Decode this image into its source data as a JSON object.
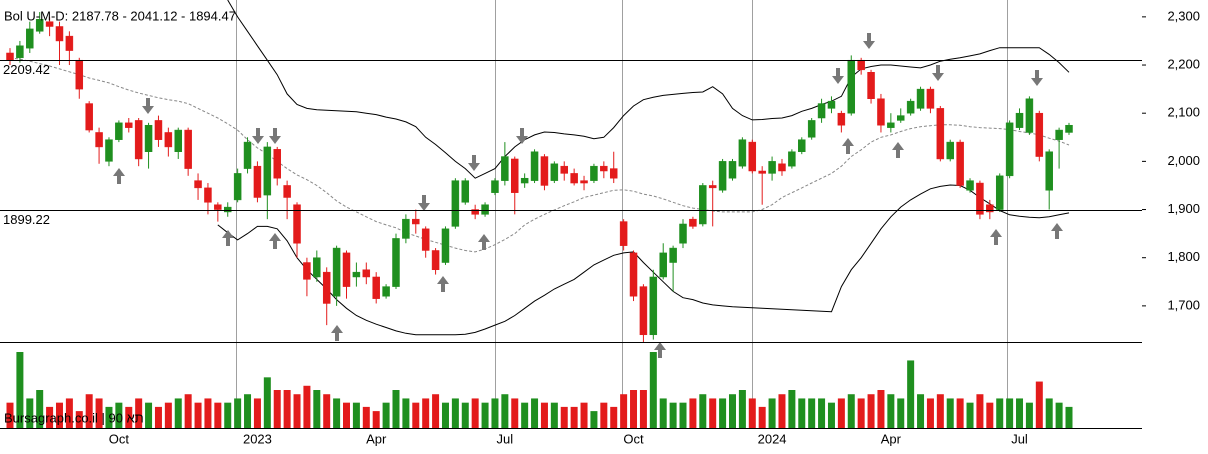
{
  "chart_data": {
    "type": "candlestick",
    "title": "Bol U-M-D: 2187.78 - 2041.12 - 1894.47",
    "watermark": "Bursagraph.co.il | 90 תא",
    "up_color": "#1f8f1f",
    "down_color": "#e31b1b",
    "band_color": "#000000",
    "ylim": [
      1625,
      2335
    ],
    "yticks": [
      {
        "value": 1700,
        "label": "1,700"
      },
      {
        "value": 1800,
        "label": "1,800"
      },
      {
        "value": 1900,
        "label": "1,900"
      },
      {
        "value": 2000,
        "label": "2,000"
      },
      {
        "value": 2100,
        "label": "2,100"
      },
      {
        "value": 2200,
        "label": "2,200"
      },
      {
        "value": 2300,
        "label": "2,300"
      }
    ],
    "levels": [
      2209.42,
      1899.22
    ],
    "categories": [
      null,
      null,
      null,
      null,
      null,
      null,
      null,
      null,
      null,
      null,
      null,
      "Oct",
      null,
      null,
      null,
      null,
      null,
      null,
      null,
      null,
      null,
      null,
      null,
      null,
      null,
      "2023",
      null,
      null,
      null,
      null,
      null,
      null,
      null,
      null,
      null,
      null,
      null,
      "Apr",
      null,
      null,
      null,
      null,
      null,
      null,
      null,
      null,
      null,
      null,
      null,
      null,
      "Jul",
      null,
      null,
      null,
      null,
      null,
      null,
      null,
      null,
      null,
      null,
      null,
      null,
      "Oct",
      null,
      null,
      null,
      null,
      null,
      null,
      null,
      null,
      null,
      null,
      null,
      null,
      null,
      "2024",
      null,
      null,
      null,
      null,
      null,
      null,
      null,
      null,
      null,
      null,
      null,
      "Apr",
      null,
      null,
      null,
      null,
      null,
      null,
      null,
      null,
      null,
      null,
      null,
      null,
      "Jul",
      null,
      null,
      null,
      null,
      null
    ],
    "open": [
      2225,
      2215,
      2235,
      2270,
      2290,
      2280,
      2260,
      2210,
      2120,
      2060,
      2000,
      2045,
      2080,
      2085,
      2020,
      2085,
      2060,
      2020,
      2065,
      1960,
      1945,
      1910,
      1895,
      1920,
      1985,
      1990,
      1930,
      2025,
      1950,
      1910,
      1790,
      1760,
      1770,
      1720,
      1810,
      1760,
      1775,
      1760,
      1720,
      1740,
      1840,
      1880,
      1860,
      1815,
      1790,
      1865,
      1915,
      1900,
      1890,
      1935,
      1960,
      2005,
      1955,
      1960,
      2010,
      1960,
      1990,
      1975,
      1960,
      1960,
      1990,
      1985,
      1875,
      1810,
      1740,
      1640,
      1760,
      1790,
      1830,
      1880,
      1870,
      1950,
      1940,
      1965,
      1990,
      2040,
      1980,
      1975,
      1995,
      1990,
      2020,
      2050,
      2090,
      2110,
      2100,
      2100,
      2210,
      2185,
      2130,
      2070,
      2085,
      2100,
      2110,
      2150,
      2110,
      2005,
      2040,
      1940,
      1955,
      1910,
      1900,
      1970,
      2070,
      2060,
      2100,
      1940,
      2045,
      2060
    ],
    "high": [
      2235,
      2250,
      2290,
      2310,
      2300,
      2290,
      2270,
      2215,
      2125,
      2070,
      2050,
      2085,
      2090,
      2090,
      2080,
      2095,
      2070,
      2070,
      2070,
      1975,
      1955,
      1915,
      1915,
      1985,
      2050,
      2000,
      2040,
      2030,
      1960,
      1915,
      1800,
      1815,
      1780,
      1825,
      1815,
      1790,
      1790,
      1770,
      1745,
      1850,
      1890,
      1900,
      1865,
      1820,
      1865,
      1965,
      1965,
      1910,
      1915,
      1965,
      2040,
      2010,
      1975,
      2025,
      2015,
      2000,
      2000,
      1985,
      1970,
      1995,
      2000,
      2020,
      1880,
      1815,
      1745,
      1775,
      1830,
      1825,
      1880,
      1885,
      1955,
      1960,
      2005,
      2005,
      2050,
      2045,
      1990,
      2010,
      2005,
      2025,
      2050,
      2090,
      2130,
      2135,
      2105,
      2220,
      2215,
      2190,
      2140,
      2100,
      2110,
      2130,
      2155,
      2155,
      2115,
      2045,
      2045,
      1965,
      1960,
      1920,
      1975,
      2085,
      2110,
      2135,
      2105,
      2025,
      2070,
      2080
    ],
    "low": [
      2200,
      2205,
      2225,
      2265,
      2260,
      2200,
      2200,
      2130,
      2060,
      1995,
      1990,
      2040,
      2060,
      1990,
      1985,
      2030,
      2010,
      2005,
      1970,
      1920,
      1890,
      1875,
      1885,
      1915,
      1975,
      1915,
      1880,
      1950,
      1880,
      1800,
      1720,
      1750,
      1660,
      1700,
      1715,
      1740,
      1745,
      1705,
      1715,
      1735,
      1830,
      1850,
      1800,
      1765,
      1785,
      1860,
      1910,
      1880,
      1885,
      1930,
      1950,
      1890,
      1945,
      1955,
      1940,
      1955,
      1960,
      1950,
      1940,
      1955,
      1965,
      1955,
      1815,
      1710,
      1625,
      1630,
      1755,
      1730,
      1820,
      1860,
      1865,
      1865,
      1935,
      1960,
      1985,
      1975,
      1910,
      1960,
      1970,
      1985,
      2015,
      2045,
      2080,
      2100,
      2060,
      2095,
      2180,
      2120,
      2060,
      2060,
      2080,
      2095,
      2105,
      2100,
      2000,
      2000,
      1945,
      1935,
      1880,
      1880,
      1895,
      1965,
      2065,
      2055,
      2000,
      1900,
      1985,
      2055
    ],
    "close": [
      2210,
      2240,
      2275,
      2295,
      2280,
      2250,
      2230,
      2150,
      2065,
      2030,
      2045,
      2080,
      2070,
      2005,
      2075,
      2045,
      2030,
      2065,
      1985,
      1945,
      1915,
      1900,
      1905,
      1975,
      2040,
      1925,
      2030,
      1965,
      1925,
      1830,
      1755,
      1800,
      1705,
      1820,
      1740,
      1770,
      1760,
      1715,
      1740,
      1840,
      1880,
      1870,
      1815,
      1775,
      1860,
      1960,
      1960,
      1890,
      1910,
      1960,
      2010,
      1935,
      1965,
      2020,
      1950,
      1995,
      1975,
      1955,
      1955,
      1990,
      1980,
      1965,
      1825,
      1720,
      1640,
      1760,
      1810,
      1820,
      1870,
      1865,
      1950,
      1945,
      2000,
      2000,
      2045,
      1980,
      1975,
      2000,
      1980,
      2020,
      2045,
      2085,
      2120,
      2125,
      2075,
      2210,
      2190,
      2130,
      2075,
      2080,
      2095,
      2125,
      2150,
      2110,
      2005,
      2040,
      1950,
      1960,
      1890,
      1895,
      1970,
      2080,
      2100,
      2130,
      2010,
      2020,
      2065,
      2075
    ],
    "volume": [
      30,
      90,
      35,
      45,
      25,
      30,
      35,
      20,
      40,
      35,
      25,
      30,
      25,
      35,
      30,
      25,
      30,
      35,
      40,
      30,
      35,
      30,
      30,
      35,
      40,
      35,
      60,
      45,
      45,
      40,
      50,
      45,
      40,
      35,
      30,
      30,
      25,
      20,
      30,
      45,
      35,
      30,
      35,
      40,
      30,
      35,
      30,
      35,
      30,
      35,
      40,
      35,
      30,
      35,
      30,
      30,
      25,
      25,
      30,
      20,
      30,
      25,
      40,
      45,
      45,
      90,
      35,
      30,
      30,
      35,
      40,
      35,
      35,
      40,
      45,
      35,
      25,
      35,
      40,
      45,
      35,
      35,
      35,
      30,
      35,
      40,
      35,
      40,
      45,
      40,
      35,
      80,
      40,
      35,
      40,
      35,
      35,
      30,
      40,
      30,
      35,
      35,
      35,
      30,
      55,
      35,
      30,
      25
    ],
    "bands": {
      "upper": [
        null,
        null,
        null,
        null,
        null,
        null,
        null,
        null,
        null,
        null,
        null,
        null,
        null,
        null,
        null,
        null,
        null,
        null,
        null,
        null,
        null,
        null,
        2335,
        2300,
        2270,
        2240,
        2210,
        2180,
        2140,
        2118,
        2110,
        2107,
        2106,
        2105,
        2104,
        2103,
        2100,
        2097,
        2092,
        2088,
        2082,
        2072,
        2050,
        2035,
        2018,
        2000,
        1985,
        1965,
        1975,
        1985,
        2010,
        2030,
        2045,
        2055,
        2061,
        2060,
        2057,
        2055,
        2052,
        2047,
        2050,
        2070,
        2095,
        2115,
        2128,
        2133,
        2137,
        2139,
        2141,
        2143,
        2144,
        2155,
        2140,
        2110,
        2095,
        2086,
        2087,
        2089,
        2090,
        2095,
        2104,
        2110,
        2118,
        2125,
        2135,
        2175,
        2192,
        2197,
        2200,
        2200,
        2198,
        2196,
        2194,
        2200,
        2208,
        2212,
        2215,
        2219,
        2223,
        2230,
        2236,
        2236,
        2236,
        2236,
        2236,
        2222,
        2205,
        2185
      ],
      "middle": [
        2215,
        2212,
        2208,
        2203,
        2198,
        2192,
        2186,
        2180,
        2173,
        2168,
        2163,
        2155,
        2148,
        2142,
        2137,
        2132,
        2128,
        2125,
        2120,
        2110,
        2100,
        2090,
        2078,
        2065,
        2045,
        2028,
        2015,
        2000,
        1985,
        1972,
        1962,
        1950,
        1935,
        1918,
        1905,
        1895,
        1885,
        1875,
        1868,
        1862,
        1852,
        1845,
        1838,
        1832,
        1826,
        1820,
        1815,
        1812,
        1818,
        1827,
        1838,
        1850,
        1868,
        1880,
        1890,
        1899,
        1908,
        1916,
        1925,
        1930,
        1935,
        1940,
        1941,
        1938,
        1932,
        1928,
        1922,
        1915,
        1908,
        1903,
        1900,
        1897,
        1895,
        1895,
        1895,
        1895,
        1900,
        1910,
        1925,
        1935,
        1945,
        1955,
        1965,
        1975,
        1990,
        2010,
        2024,
        2040,
        2050,
        2055,
        2062,
        2068,
        2072,
        2074,
        2076,
        2076,
        2075,
        2072,
        2070,
        2069,
        2068,
        2066,
        2062,
        2059,
        2055,
        2048,
        2042,
        2034
      ],
      "lower": [
        null,
        null,
        null,
        null,
        null,
        null,
        null,
        null,
        null,
        null,
        null,
        null,
        null,
        null,
        null,
        null,
        null,
        null,
        null,
        null,
        null,
        1868,
        1852,
        1837,
        1850,
        1865,
        1865,
        1860,
        1835,
        1800,
        1775,
        1755,
        1735,
        1713,
        1695,
        1680,
        1670,
        1662,
        1655,
        1648,
        1643,
        1640,
        1640,
        1640,
        1640,
        1640,
        1641,
        1645,
        1652,
        1660,
        1668,
        1680,
        1695,
        1710,
        1722,
        1735,
        1745,
        1755,
        1770,
        1785,
        1795,
        1805,
        1810,
        1812,
        1790,
        1770,
        1750,
        1730,
        1717,
        1713,
        1706,
        1702,
        1700,
        1698,
        1697,
        1696,
        1695,
        1694,
        1693,
        1692,
        1691,
        1690,
        1689,
        1688,
        1740,
        1775,
        1800,
        1830,
        1860,
        1885,
        1905,
        1920,
        1932,
        1943,
        1948,
        1951,
        1950,
        1940,
        1925,
        1912,
        1898,
        1889,
        1886,
        1884,
        1883,
        1885,
        1889,
        1893
      ]
    }
  }
}
